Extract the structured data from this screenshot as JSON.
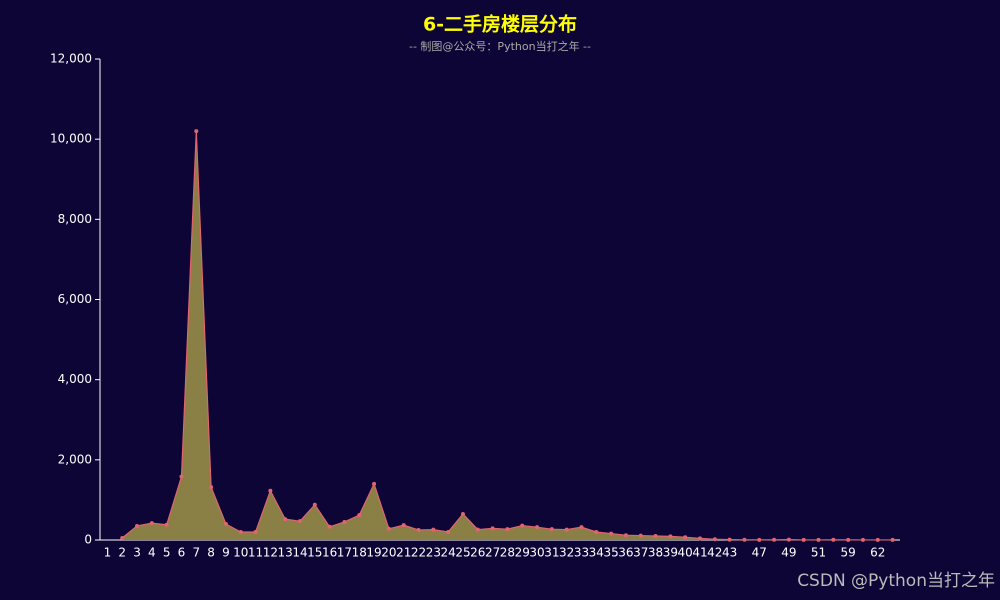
{
  "chart_data": {
    "type": "area",
    "title": "6-二手房楼层分布",
    "subtitle": "-- 制图@公众号：Python当打之年 --",
    "watermark": "CSDN @Python当打之年",
    "categories": [
      "1",
      "2",
      "3",
      "4",
      "5",
      "6",
      "7",
      "8",
      "9",
      "10",
      "11",
      "12",
      "13",
      "14",
      "15",
      "16",
      "17",
      "18",
      "19",
      "20",
      "21",
      "22",
      "23",
      "24",
      "25",
      "26",
      "27",
      "28",
      "29",
      "30",
      "31",
      "32",
      "33",
      "34",
      "35",
      "36",
      "37",
      "38",
      "39",
      "40",
      "41",
      "42",
      "43",
      null,
      "47",
      null,
      "49",
      null,
      "51",
      null,
      "59",
      null,
      "62",
      null
    ],
    "values": [
      null,
      50,
      350,
      420,
      380,
      1580,
      10200,
      1320,
      400,
      200,
      200,
      1230,
      520,
      470,
      880,
      330,
      450,
      620,
      1400,
      280,
      370,
      250,
      260,
      200,
      650,
      260,
      290,
      270,
      360,
      320,
      270,
      260,
      320,
      200,
      160,
      120,
      110,
      100,
      90,
      70,
      40,
      20,
      10,
      5,
      3,
      5,
      10,
      2,
      2,
      5,
      3,
      2,
      2,
      2
    ],
    "color": "#e0656f",
    "area_color": "#8a7f45",
    "ylim": [
      0,
      12000
    ],
    "yticks": [
      0,
      {
        "value": 2000,
        "label": "2,000"
      },
      {
        "value": 4000,
        "label": "4,000"
      },
      {
        "value": 6000,
        "label": "6,000"
      },
      {
        "value": 8000,
        "label": "8,000"
      },
      {
        "value": 10000,
        "label": "10,000"
      },
      {
        "value": 12000,
        "label": "12,000"
      }
    ],
    "grid": false
  }
}
